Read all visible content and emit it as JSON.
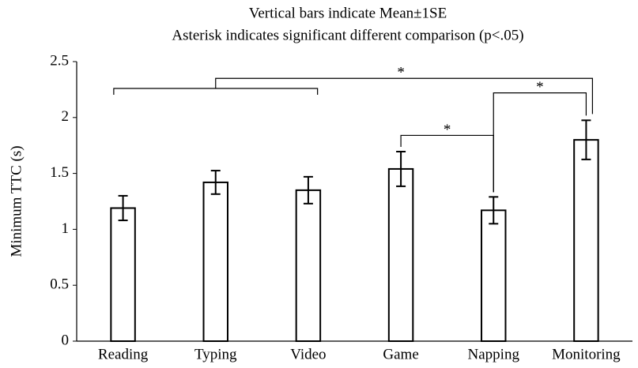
{
  "chart_data": {
    "type": "bar",
    "title": "Vertical bars indicate Mean±1SE",
    "subtitle": "Asterisk indicates significant different comparison (p<.05)",
    "ylabel": "Minimum TTC (s)",
    "categories": [
      "Reading",
      "Typing",
      "Video",
      "Game",
      "Napping",
      "Monitoring"
    ],
    "values": [
      1.19,
      1.42,
      1.35,
      1.54,
      1.17,
      1.8
    ],
    "errors": [
      0.11,
      0.105,
      0.12,
      0.155,
      0.12,
      0.175
    ],
    "color": "#ffffff",
    "ylim": [
      0,
      2.5
    ],
    "yticks": [
      0,
      0.5,
      1,
      1.5,
      2,
      2.5
    ],
    "grid": false,
    "annotations": [
      {
        "text": "*",
        "from": "Game",
        "to": "Napping",
        "y": 1.84
      },
      {
        "text": "*",
        "from": "Napping",
        "to": "Monitoring",
        "y": 2.22
      },
      {
        "text": "*",
        "from_group": [
          "Reading",
          "Video"
        ],
        "group_y": 2.26,
        "to": "Monitoring",
        "y": 2.35
      }
    ]
  }
}
